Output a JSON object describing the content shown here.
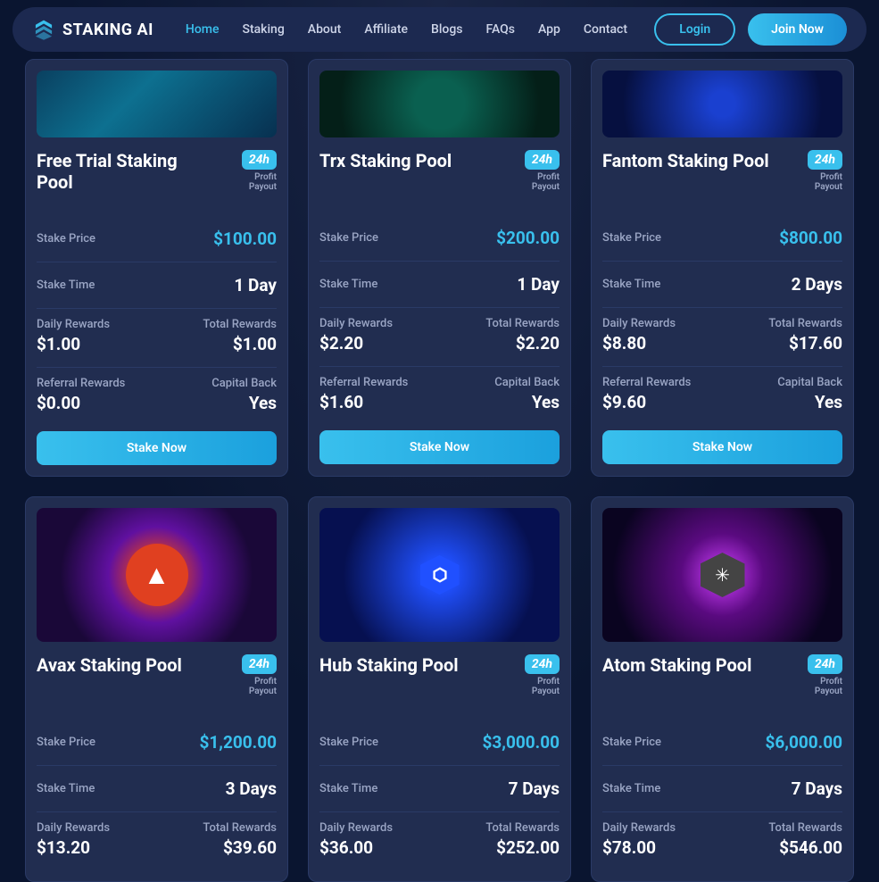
{
  "brand": "STAKING AI",
  "nav": {
    "items": [
      "Home",
      "Staking",
      "About",
      "Affiliate",
      "Blogs",
      "FAQs",
      "App",
      "Contact"
    ],
    "active_index": 0,
    "login": "Login",
    "join": "Join Now"
  },
  "badge": {
    "text": "24h",
    "sub1": "Profit",
    "sub2": "Payout"
  },
  "labels": {
    "stake_price": "Stake Price",
    "stake_time": "Stake Time",
    "daily_rewards": "Daily Rewards",
    "total_rewards": "Total Rewards",
    "referral_rewards": "Referral Rewards",
    "capital_back": "Capital Back",
    "stake_now": "Stake Now"
  },
  "colors": {
    "accent": "#39c0ed",
    "card_bg": "#212d50",
    "border": "#2a3a66",
    "text": "#ffffff",
    "muted": "#9aa5c4",
    "page_bg": "#0a1530"
  },
  "pools": [
    {
      "title": "Free Trial Staking Pool",
      "stake_price": "$100.00",
      "stake_time": "1 Day",
      "daily_rewards": "$1.00",
      "total_rewards": "$1.00",
      "referral_rewards": "$0.00",
      "capital_back": "Yes",
      "img_class": "img0",
      "img_tall": false
    },
    {
      "title": "Trx Staking Pool",
      "stake_price": "$200.00",
      "stake_time": "1 Day",
      "daily_rewards": "$2.20",
      "total_rewards": "$2.20",
      "referral_rewards": "$1.60",
      "capital_back": "Yes",
      "img_class": "img1",
      "img_tall": false
    },
    {
      "title": "Fantom Staking Pool",
      "stake_price": "$800.00",
      "stake_time": "2 Days",
      "daily_rewards": "$8.80",
      "total_rewards": "$17.60",
      "referral_rewards": "$9.60",
      "capital_back": "Yes",
      "img_class": "img2",
      "img_tall": false
    },
    {
      "title": "Avax Staking Pool",
      "stake_price": "$1,200.00",
      "stake_time": "3 Days",
      "daily_rewards": "$13.20",
      "total_rewards": "$39.60",
      "referral_rewards": "",
      "capital_back": "",
      "img_class": "img3",
      "img_tall": true
    },
    {
      "title": "Hub Staking Pool",
      "stake_price": "$3,000.00",
      "stake_time": "7 Days",
      "daily_rewards": "$36.00",
      "total_rewards": "$252.00",
      "referral_rewards": "",
      "capital_back": "",
      "img_class": "img4",
      "img_tall": true
    },
    {
      "title": "Atom Staking Pool",
      "stake_price": "$6,000.00",
      "stake_time": "7 Days",
      "daily_rewards": "$78.00",
      "total_rewards": "$546.00",
      "referral_rewards": "",
      "capital_back": "",
      "img_class": "img5",
      "img_tall": true
    }
  ]
}
